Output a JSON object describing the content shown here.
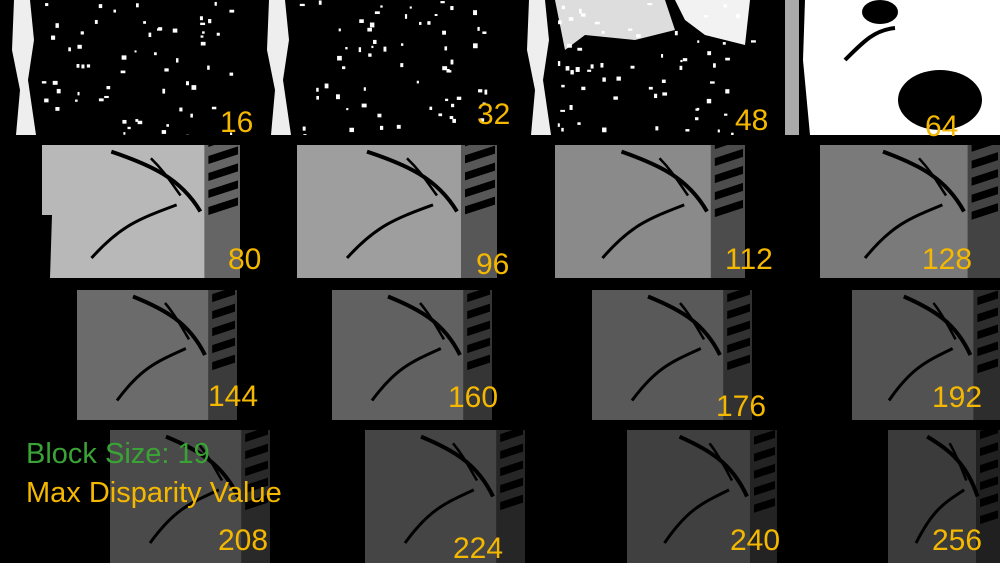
{
  "legend": {
    "block_size": "Block Size: 19",
    "max_disparity": "Max Disparity Value"
  },
  "colors": {
    "label": "#f5b800",
    "block_size_text": "#3aa335",
    "background": "#000000"
  },
  "panels": [
    {
      "label": "16",
      "disparity": 16,
      "brightness": 0.1
    },
    {
      "label": "32",
      "disparity": 32,
      "brightness": 0.1
    },
    {
      "label": "48",
      "disparity": 48,
      "brightness": 0.3
    },
    {
      "label": "64",
      "disparity": 64,
      "brightness": 0.92
    },
    {
      "label": "80",
      "disparity": 80,
      "brightness": 0.72
    },
    {
      "label": "96",
      "disparity": 96,
      "brightness": 0.62
    },
    {
      "label": "112",
      "disparity": 112,
      "brightness": 0.54
    },
    {
      "label": "128",
      "disparity": 128,
      "brightness": 0.48
    },
    {
      "label": "144",
      "disparity": 144,
      "brightness": 0.42
    },
    {
      "label": "160",
      "disparity": 160,
      "brightness": 0.38
    },
    {
      "label": "176",
      "disparity": 176,
      "brightness": 0.35
    },
    {
      "label": "192",
      "disparity": 192,
      "brightness": 0.32
    },
    {
      "label": "208",
      "disparity": 208,
      "brightness": 0.29
    },
    {
      "label": "224",
      "disparity": 224,
      "brightness": 0.27
    },
    {
      "label": "240",
      "disparity": 240,
      "brightness": 0.25
    },
    {
      "label": "256",
      "disparity": 256,
      "brightness": 0.23
    }
  ]
}
